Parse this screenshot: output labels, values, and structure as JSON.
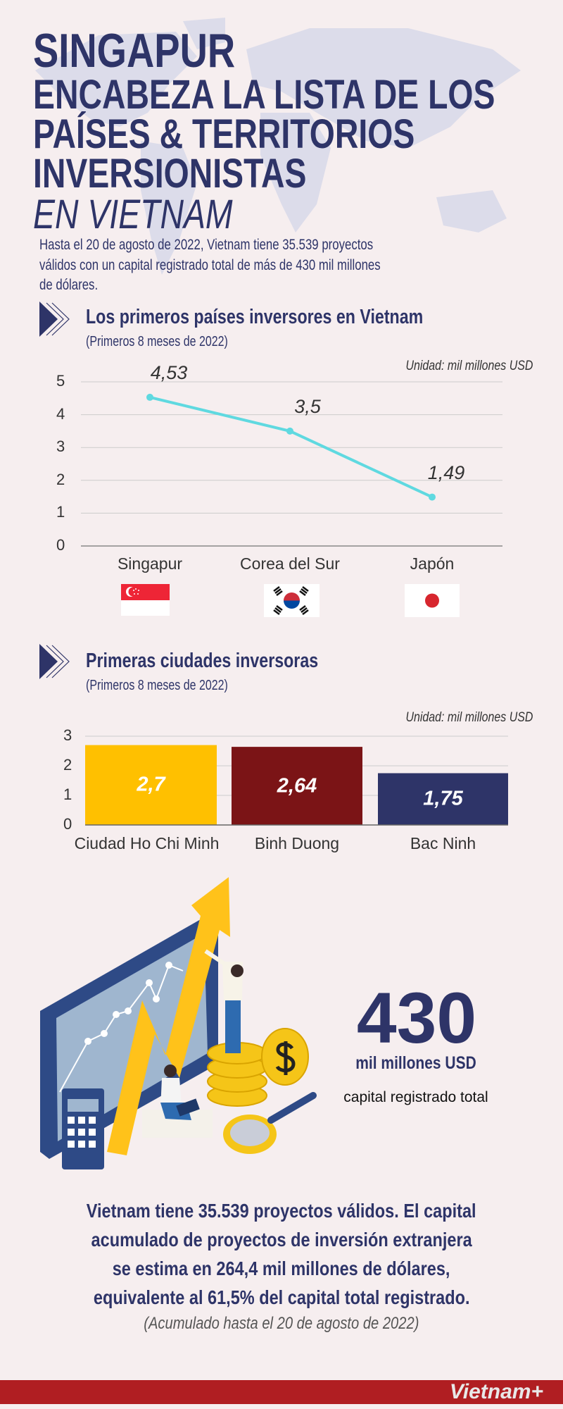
{
  "header": {
    "title_line1": "SINGAPUR",
    "title_line2": "ENCABEZA LA LISTA DE LOS",
    "title_line3": "PAÍSES & TERRITORIOS",
    "title_line4": "INVERSIONISTAS",
    "title_line5": "EN VIETNAM",
    "intro_lines": [
      "Hasta el 20 de agosto de 2022, Vietnam tiene 35.539 proyectos",
      "válidos con un capital registrado total de más de 430 mil millones",
      "de dólares."
    ]
  },
  "colors": {
    "navy": "#2e3468",
    "background": "#f6eeef",
    "line": "#5fd9e0",
    "footer_red": "#b01e22"
  },
  "chart_data": [
    {
      "type": "line",
      "title": "Los primeros países inversores en Vietnam",
      "subtitle": "(Primeros 8 meses de 2022)",
      "unit": "Unidad: mil millones USD",
      "categories": [
        "Singapur",
        "Corea del Sur",
        "Japón"
      ],
      "values": [
        4.53,
        3.5,
        1.49
      ],
      "data_labels": [
        "4,53",
        "3,5",
        "1,49"
      ],
      "yticks": [
        "0",
        "1",
        "2",
        "3",
        "4",
        "5"
      ],
      "ylim": [
        0,
        5
      ],
      "grid": true,
      "line_color": "#5fd9e0",
      "flags": [
        "singapore-flag",
        "south-korea-flag",
        "japan-flag"
      ]
    },
    {
      "type": "bar",
      "title": "Primeras ciudades inversoras",
      "subtitle": "(Primeros 8 meses de 2022)",
      "unit": "Unidad: mil millones USD",
      "categories": [
        "Ciudad Ho Chi Minh",
        "Binh Duong",
        "Bac Ninh"
      ],
      "values": [
        2.7,
        2.64,
        1.75
      ],
      "data_labels": [
        "2,7",
        "2,64",
        "1,75"
      ],
      "bar_colors": [
        "#ffc000",
        "#7b1416",
        "#2e3468"
      ],
      "yticks": [
        "0",
        "1",
        "2",
        "3"
      ],
      "ylim": [
        0,
        3
      ],
      "grid": true
    }
  ],
  "highlight": {
    "number": "430",
    "unit": "mil millones USD",
    "caption": "capital registrado total",
    "illustration": "growth-chart-illustration"
  },
  "footer": {
    "lines": [
      "Vietnam tiene 35.539 proyectos válidos. El capital",
      "acumulado de proyectos de inversión extranjera",
      "se estima en 264,4 mil millones de dólares,",
      "equivalente al 61,5% del capital total registrado."
    ],
    "note": "(Acumulado hasta el 20 de agosto de 2022)",
    "logo": "Vietnam+"
  }
}
